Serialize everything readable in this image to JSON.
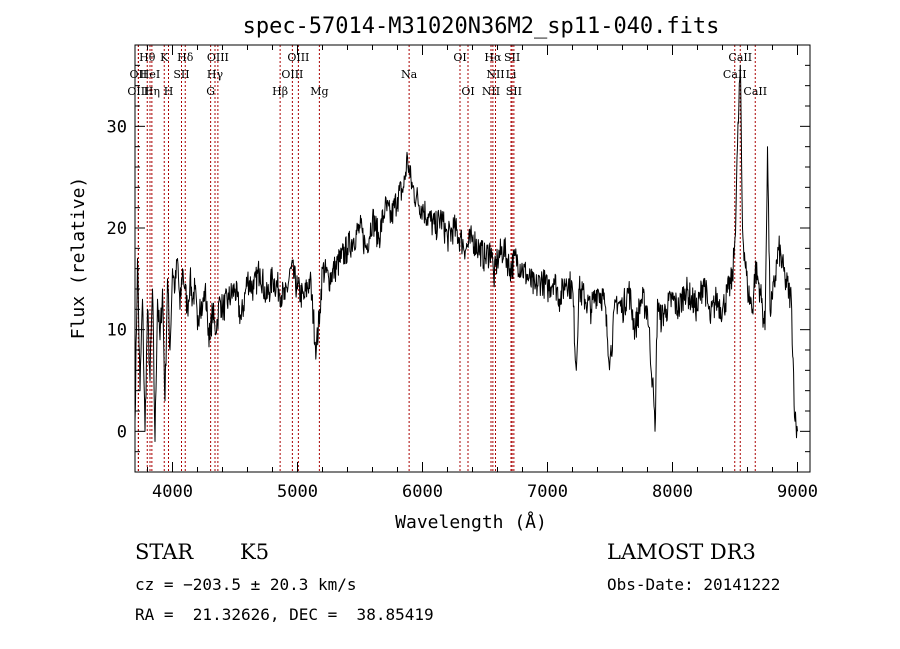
{
  "chart_data": {
    "type": "line",
    "title": "spec-57014-M31020N36M2_sp11-040.fits",
    "xlabel": "Wavelength (Å)",
    "ylabel": "Flux (relative)",
    "xlim": [
      3700,
      9100
    ],
    "ylim": [
      -4,
      38
    ],
    "xticks": [
      4000,
      5000,
      6000,
      7000,
      8000,
      9000
    ],
    "yticks": [
      0,
      10,
      20,
      30
    ],
    "grid": false,
    "line_color": "#000000",
    "marker_color": "#aa0000",
    "spectral_lines": [
      {
        "label": "Hθ",
        "x": 3798,
        "row": 0
      },
      {
        "label": "OII",
        "x": 3727,
        "row": 1
      },
      {
        "label": "OIII",
        "x": 3727,
        "row": 2
      },
      {
        "label": "HeI",
        "x": 3820,
        "row": 1
      },
      {
        "label": "Hη",
        "x": 3835,
        "row": 2
      },
      {
        "label": "K",
        "x": 3934,
        "row": 0
      },
      {
        "label": "H",
        "x": 3968,
        "row": 2
      },
      {
        "label": "Hδ",
        "x": 4102,
        "row": 0
      },
      {
        "label": "SII",
        "x": 4072,
        "row": 1
      },
      {
        "label": "OIII",
        "x": 4363,
        "row": 0
      },
      {
        "label": "Hγ",
        "x": 4340,
        "row": 1
      },
      {
        "label": "G",
        "x": 4305,
        "row": 2
      },
      {
        "label": "OIII",
        "x": 5007,
        "row": 0
      },
      {
        "label": "OIII",
        "x": 4959,
        "row": 1
      },
      {
        "label": "Hβ",
        "x": 4861,
        "row": 2
      },
      {
        "label": "Mg",
        "x": 5175,
        "row": 2
      },
      {
        "label": "Na",
        "x": 5893,
        "row": 1
      },
      {
        "label": "OI",
        "x": 6300,
        "row": 0
      },
      {
        "label": "OI",
        "x": 6364,
        "row": 2
      },
      {
        "label": "Hα",
        "x": 6563,
        "row": 0
      },
      {
        "label": "SII",
        "x": 6717,
        "row": 0
      },
      {
        "label": "NII",
        "x": 6584,
        "row": 1
      },
      {
        "label": "Li",
        "x": 6708,
        "row": 1
      },
      {
        "label": "NII",
        "x": 6548,
        "row": 2
      },
      {
        "label": "SII",
        "x": 6731,
        "row": 2
      },
      {
        "label": "CaII",
        "x": 8542,
        "row": 0
      },
      {
        "label": "CaII",
        "x": 8498,
        "row": 1
      },
      {
        "label": "CaII",
        "x": 8662,
        "row": 2
      }
    ],
    "series": [
      {
        "x": [
          3700,
          3720,
          3740,
          3760,
          3780,
          3800,
          3820,
          3840,
          3860,
          3880,
          3900,
          3920,
          3940,
          3960,
          3980,
          4000,
          4020,
          4040,
          4060,
          4080,
          4100,
          4120,
          4140,
          4160,
          4180,
          4200,
          4220,
          4240,
          4260,
          4280,
          4300,
          4320,
          4340,
          4360,
          4380,
          4400,
          4450,
          4500,
          4550,
          4600,
          4650,
          4700,
          4750,
          4800,
          4850,
          4900,
          4950,
          5000,
          5050,
          5100,
          5150,
          5180,
          5200,
          5250,
          5300,
          5350,
          5400,
          5450,
          5500,
          5550,
          5600,
          5650,
          5700,
          5750,
          5800,
          5850,
          5880,
          5900,
          5920,
          5950,
          6000,
          6050,
          6100,
          6150,
          6200,
          6250,
          6300,
          6350,
          6400,
          6450,
          6500,
          6550,
          6570,
          6600,
          6650,
          6700,
          6750,
          6800,
          6850,
          6900,
          6950,
          7000,
          7050,
          7100,
          7150,
          7200,
          7230,
          7250,
          7300,
          7350,
          7400,
          7450,
          7500,
          7550,
          7600,
          7650,
          7700,
          7750,
          7800,
          7840,
          7860,
          7880,
          7900,
          7950,
          8000,
          8050,
          8100,
          8150,
          8200,
          8250,
          8300,
          8350,
          8400,
          8450,
          8480,
          8500,
          8520,
          8542,
          8560,
          8600,
          8640,
          8662,
          8700,
          8740,
          8760,
          8780,
          8800,
          8850,
          8900,
          8950,
          8980,
          9000
        ],
        "y": [
          1,
          17,
          4,
          13,
          0,
          12,
          5,
          14,
          -1,
          13,
          9,
          14,
          3,
          15,
          8,
          16,
          14,
          17,
          12,
          16,
          14,
          12,
          15,
          13,
          14,
          10,
          13,
          12,
          14,
          11,
          9,
          12,
          10,
          11,
          13,
          12,
          13,
          14,
          11,
          15,
          14,
          16,
          13,
          15,
          14,
          13,
          16,
          14,
          13,
          15,
          8,
          12,
          16,
          15,
          16,
          17,
          18,
          19,
          20,
          18,
          21,
          19,
          22,
          21,
          23,
          24,
          27,
          25,
          24,
          23,
          22,
          21,
          20,
          21,
          19,
          20,
          19,
          18,
          19,
          18,
          17,
          18,
          15,
          17,
          18,
          16,
          17,
          16,
          15,
          14,
          15,
          14,
          15,
          13,
          15,
          14,
          6,
          14,
          13,
          12,
          14,
          13,
          7,
          13,
          12,
          14,
          10,
          13,
          12,
          5,
          0,
          13,
          11,
          12,
          13,
          12,
          14,
          13,
          12,
          15,
          11,
          13,
          12,
          14,
          15,
          19,
          28,
          36,
          20,
          14,
          12,
          16,
          14,
          10,
          28,
          12,
          13,
          18,
          15,
          13,
          1,
          0
        ]
      }
    ]
  },
  "info": {
    "object_class": "STAR",
    "subclass": "K5",
    "survey": "LAMOST DR3",
    "cz": "cz = −203.5 ± 20.3 km/s",
    "obs_date": "Obs-Date: 20141222",
    "coords": "RA =  21.32626, DEC =  38.85419"
  }
}
